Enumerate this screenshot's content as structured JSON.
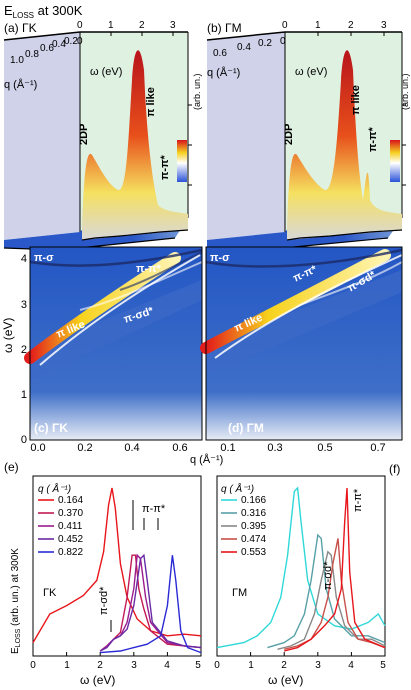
{
  "header": {
    "title": "E",
    "title_sub": "LOSS",
    "title_rest": " at 300K"
  },
  "top_panels": [
    {
      "label": "(a) ΓK",
      "q_axis_label": "q (Å⁻¹)",
      "q_ticks": [
        "1.0",
        "0.8",
        "0.6",
        "0.4",
        "0.2",
        "0"
      ],
      "w_axis_label": "ω (eV)",
      "w_ticks": [
        "0",
        "1",
        "2",
        "3"
      ],
      "z_label": "(arb. un.)",
      "annotations": [
        "2DP",
        "π like",
        "π-π*"
      ]
    },
    {
      "label": "(b) ΓM",
      "q_axis_label": "q (Å⁻¹)",
      "q_ticks": [
        "0.6",
        "0.4",
        "0.2",
        "0"
      ],
      "w_axis_label": "ω (eV)",
      "w_ticks": [
        "0",
        "1",
        "2",
        "3"
      ],
      "z_label": "(arb. un.)",
      "annotations": [
        "2DP",
        "π like",
        "π-π*"
      ]
    }
  ],
  "maps": {
    "y_label": "ω (eV)",
    "y_ticks": [
      "0",
      "1",
      "2",
      "3",
      "4"
    ],
    "x_label": "q (Å⁻¹)",
    "panel_c": {
      "label": "(c) ΓK",
      "x_ticks": [
        "0.0",
        "0.2",
        "0.4",
        "0.6"
      ],
      "annotations": [
        "π-σ",
        "π-π*",
        "π like",
        "π-σd*"
      ]
    },
    "panel_d": {
      "label": "(d) ΓM",
      "x_ticks": [
        "0.1",
        "0.3",
        "0.5",
        "0.7"
      ],
      "annotations": [
        "π-σ",
        "π-π*",
        "π like",
        "π-σd*"
      ]
    }
  },
  "bottom": {
    "panel_e": "(e)",
    "panel_f": "(f)",
    "y_label": "E",
    "y_label_sub": "LOSS",
    "y_label_rest": " (arb. un.) at 300K",
    "x_label": "ω (eV)",
    "x_ticks": [
      "0",
      "1",
      "2",
      "3",
      "4",
      "5"
    ],
    "legend_title": "q ( Å⁻¹)",
    "left_dir": "ΓK",
    "right_dir": "ΓM",
    "left_annotations": [
      "π-σd*",
      "π-π*"
    ],
    "right_annotations": [
      "π-σd*",
      "π-π*"
    ]
  },
  "chart_data": [
    {
      "type": "line",
      "title": "(e) ΓK",
      "xlabel": "ω (eV)",
      "ylabel": "ELOSS (arb. un.) at 300K",
      "xlim": [
        0,
        5
      ],
      "series": [
        {
          "name": "0.164",
          "color": "#e8151b",
          "x": [
            0,
            0.5,
            1.0,
            1.5,
            1.9,
            2.1,
            2.25,
            2.35,
            2.45,
            2.6,
            2.8,
            3.1,
            3.5,
            4.0,
            4.5,
            5.0
          ],
          "y": [
            0.08,
            0.25,
            0.3,
            0.36,
            0.45,
            0.62,
            0.9,
            1.0,
            0.88,
            0.55,
            0.35,
            0.22,
            0.15,
            0.12,
            0.13,
            0.12
          ]
        },
        {
          "name": "0.370",
          "color": "#c11a55",
          "x": [
            2.0,
            2.2,
            2.4,
            2.6,
            2.8,
            2.95,
            3.05,
            3.15,
            3.3,
            3.5,
            4.0,
            4.5,
            5.0
          ],
          "y": [
            0.03,
            0.06,
            0.1,
            0.14,
            0.35,
            0.6,
            0.6,
            0.4,
            0.28,
            0.15,
            0.07,
            0.06,
            0.05
          ]
        },
        {
          "name": "0.411",
          "color": "#9b1c8e",
          "x": [
            2.0,
            2.2,
            2.4,
            2.6,
            2.8,
            3.0,
            3.1,
            3.2,
            3.35,
            3.5,
            4.0,
            4.5,
            5.0
          ],
          "y": [
            0.03,
            0.06,
            0.1,
            0.12,
            0.2,
            0.4,
            0.6,
            0.58,
            0.35,
            0.2,
            0.08,
            0.06,
            0.05
          ]
        },
        {
          "name": "0.452",
          "color": "#6a2aa5",
          "x": [
            2.0,
            2.2,
            2.4,
            2.6,
            2.8,
            3.0,
            3.2,
            3.3,
            3.4,
            3.55,
            4.0,
            4.5,
            5.0
          ],
          "y": [
            0.03,
            0.05,
            0.1,
            0.12,
            0.16,
            0.3,
            0.58,
            0.6,
            0.45,
            0.2,
            0.09,
            0.06,
            0.05
          ]
        },
        {
          "name": "0.822",
          "color": "#2a2ad5",
          "x": [
            2.0,
            2.6,
            3.0,
            3.4,
            3.8,
            4.0,
            4.15,
            4.25,
            4.4,
            4.6,
            5.0
          ],
          "y": [
            0.02,
            0.03,
            0.05,
            0.07,
            0.12,
            0.3,
            0.6,
            0.45,
            0.15,
            0.05,
            0.02
          ]
        }
      ]
    },
    {
      "type": "line",
      "title": "(f) ΓM",
      "xlabel": "ω (eV)",
      "xlim": [
        0,
        5
      ],
      "series": [
        {
          "name": "0.166",
          "color": "#2fd8d8",
          "x": [
            0,
            0.8,
            1.2,
            1.6,
            1.9,
            2.1,
            2.3,
            2.4,
            2.5,
            2.7,
            3.0,
            3.5,
            4.0,
            4.5,
            4.8,
            5.0
          ],
          "y": [
            0.05,
            0.08,
            0.12,
            0.2,
            0.35,
            0.6,
            0.98,
            1.0,
            0.8,
            0.45,
            0.25,
            0.18,
            0.16,
            0.2,
            0.25,
            0.18
          ]
        },
        {
          "name": "0.316",
          "color": "#58a0a8",
          "x": [
            1.5,
            2.0,
            2.3,
            2.6,
            2.8,
            3.0,
            3.1,
            3.25,
            3.5,
            4.0,
            4.5,
            5.0
          ],
          "y": [
            0.05,
            0.08,
            0.12,
            0.25,
            0.45,
            0.72,
            0.7,
            0.4,
            0.22,
            0.12,
            0.12,
            0.08
          ]
        },
        {
          "name": "0.395",
          "color": "#888888",
          "x": [
            1.8,
            2.2,
            2.6,
            2.9,
            3.1,
            3.3,
            3.4,
            3.55,
            3.8,
            4.2,
            4.6,
            5.0
          ],
          "y": [
            0.04,
            0.06,
            0.1,
            0.25,
            0.45,
            0.62,
            0.6,
            0.35,
            0.18,
            0.1,
            0.1,
            0.06
          ]
        },
        {
          "name": "0.474",
          "color": "#c7504a",
          "x": [
            2.0,
            2.4,
            2.8,
            3.1,
            3.3,
            3.45,
            3.6,
            3.7,
            3.9,
            4.2,
            4.6,
            5.0
          ],
          "y": [
            0.04,
            0.06,
            0.1,
            0.2,
            0.35,
            0.55,
            0.7,
            0.45,
            0.2,
            0.1,
            0.08,
            0.05
          ]
        },
        {
          "name": "0.553",
          "color": "#e8151b",
          "x": [
            2.0,
            2.4,
            2.8,
            3.2,
            3.5,
            3.7,
            3.8,
            3.87,
            3.95,
            4.1,
            4.4,
            5.0
          ],
          "y": [
            0.03,
            0.05,
            0.1,
            0.18,
            0.25,
            0.4,
            0.8,
            1.0,
            0.5,
            0.2,
            0.1,
            0.05
          ]
        }
      ]
    }
  ]
}
